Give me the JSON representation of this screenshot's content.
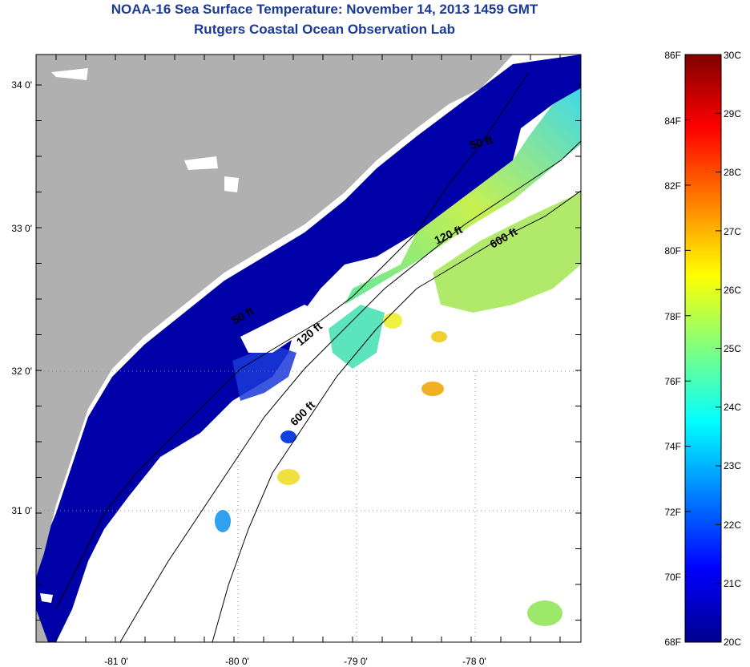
{
  "title": {
    "line1": "NOAA-16 Sea Surface Temperature:  November 14, 2013 1459 GMT",
    "line2": "Rutgers Coastal Ocean Observation Lab"
  },
  "map": {
    "lat_labels": [
      "34 0'",
      "33 0'",
      "32 0'",
      "31 0'"
    ],
    "lon_labels": [
      "-81 0'",
      "-80 0'",
      "-79 0'",
      "-78 0'"
    ],
    "lat_values": [
      34,
      33,
      32,
      31
    ],
    "lon_values": [
      -81,
      -80,
      -79,
      -78
    ],
    "isobath_labels": {
      "north_50": "50 ft",
      "north_120": "120 ft",
      "north_600": "600 ft",
      "south_50": "50 ft",
      "south_120": "120 ft",
      "south_600": "600 ft"
    }
  },
  "colorbar": {
    "fahrenheit_labels": [
      "86F",
      "84F",
      "82F",
      "80F",
      "78F",
      "76F",
      "74F",
      "72F",
      "70F",
      "68F"
    ],
    "celsius_labels": [
      "30C",
      "29C",
      "28C",
      "27C",
      "26C",
      "25C",
      "24C",
      "23C",
      "22C",
      "21C",
      "20C"
    ],
    "min_c": 20,
    "max_c": 30
  },
  "colors": {
    "title": "#1a3a9a",
    "land": "#b0b0b0",
    "cold_water": "#0000a8",
    "cloud": "#ffffff"
  }
}
